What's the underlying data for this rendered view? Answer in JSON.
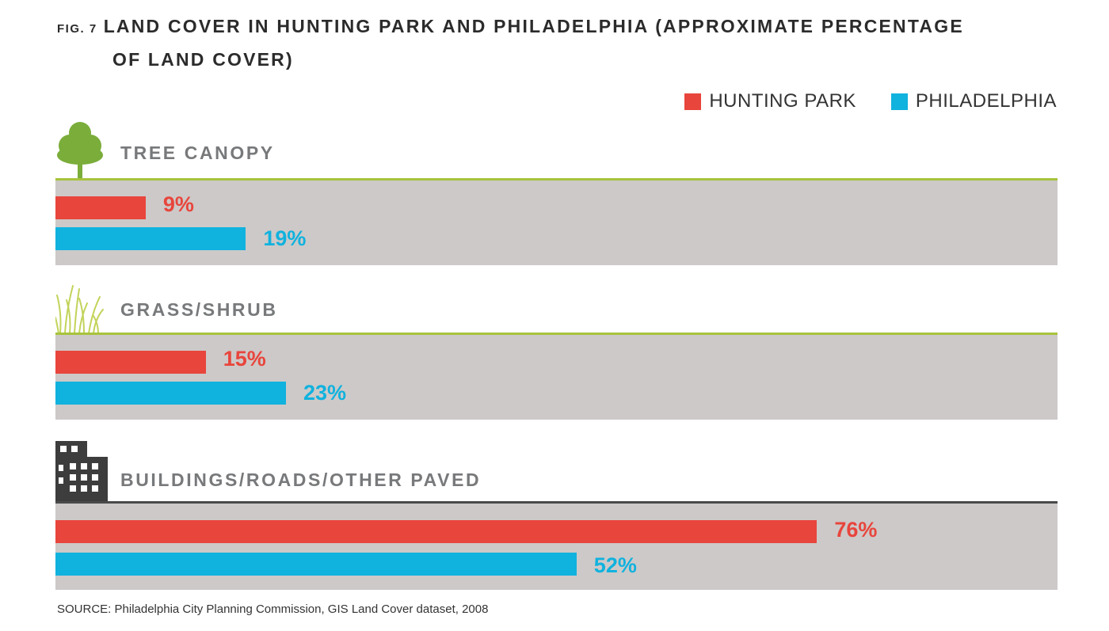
{
  "figure": {
    "number": "FIG. 7",
    "title_line1": "LAND COVER IN HUNTING PARK AND PHILADELPHIA (APPROXIMATE PERCENTAGE",
    "title_line2": "OF LAND COVER)"
  },
  "legend": {
    "hunting_park": "HUNTING PARK",
    "philadelphia": "PHILADELPHIA"
  },
  "colors": {
    "hunting_park": "#e8453c",
    "philadelphia": "#10b2de",
    "panel": "#cdc9c8",
    "greenery_rule": "#a7c33c",
    "paved_rule": "#4a4a4a"
  },
  "sections": {
    "tree": {
      "label": "TREE CANOPY",
      "hp_label": "9%",
      "ph_label": "19%"
    },
    "grass": {
      "label": "GRASS/SHRUB",
      "hp_label": "15%",
      "ph_label": "23%"
    },
    "paved": {
      "label": "BUILDINGS/ROADS/OTHER PAVED",
      "hp_label": "76%",
      "ph_label": "52%"
    }
  },
  "icons": [
    "tree-icon",
    "grass-icon",
    "building-icon"
  ],
  "source": "SOURCE: Philadelphia City Planning Commission, GIS Land Cover dataset, 2008",
  "chart_data": {
    "type": "bar",
    "orientation": "horizontal",
    "categories": [
      "TREE CANOPY",
      "GRASS/SHRUB",
      "BUILDINGS/ROADS/OTHER PAVED"
    ],
    "series": [
      {
        "name": "HUNTING PARK",
        "values": [
          9,
          15,
          76
        ]
      },
      {
        "name": "PHILADELPHIA",
        "values": [
          19,
          23,
          52
        ]
      }
    ],
    "unit": "%",
    "xlim": [
      0,
      100
    ],
    "legend_position": "top-right",
    "grid": false
  }
}
